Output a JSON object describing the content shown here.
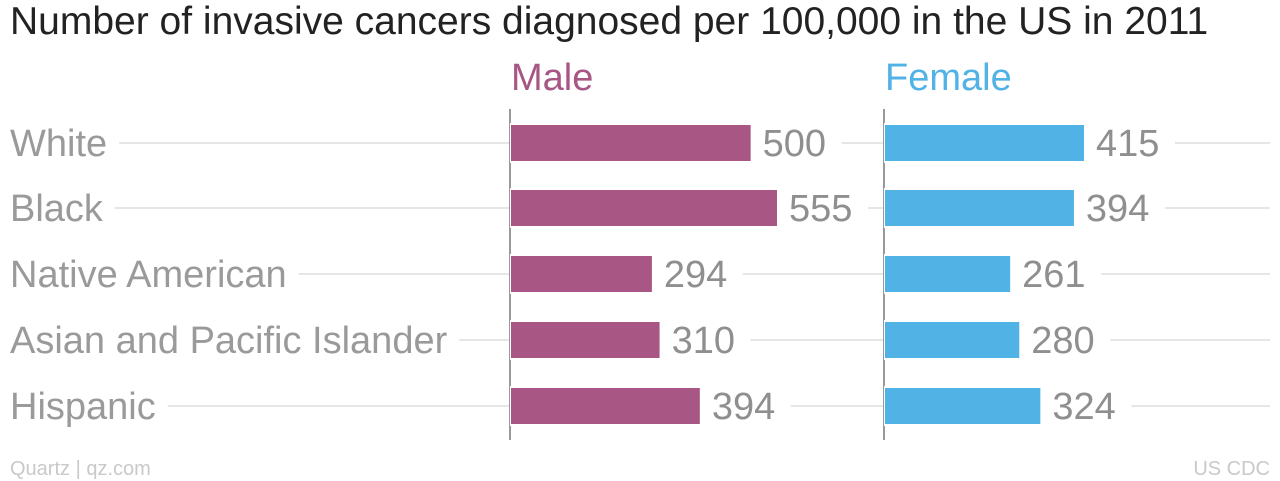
{
  "chart_data": {
    "type": "bar",
    "title": "Number of invasive cancers diagnosed per 100,000 in the US in 2011",
    "categories": [
      "White",
      "Black",
      "Native American",
      "Asian and Pacific Islander",
      "Hispanic"
    ],
    "series": [
      {
        "name": "Male",
        "values": [
          500,
          555,
          294,
          310,
          394
        ],
        "color": "#a85683"
      },
      {
        "name": "Female",
        "values": [
          415,
          394,
          261,
          280,
          324
        ],
        "color": "#51b2e5"
      }
    ],
    "xlim": [
      0,
      555
    ],
    "grid": true
  },
  "footer": {
    "source_left": "Quartz | qz.com",
    "source_right": "US CDC"
  },
  "colors": {
    "category_text": "#9a9a9a",
    "value_text": "#8f8f8f",
    "grid": "#e6e6e6",
    "axis": "#999999"
  }
}
